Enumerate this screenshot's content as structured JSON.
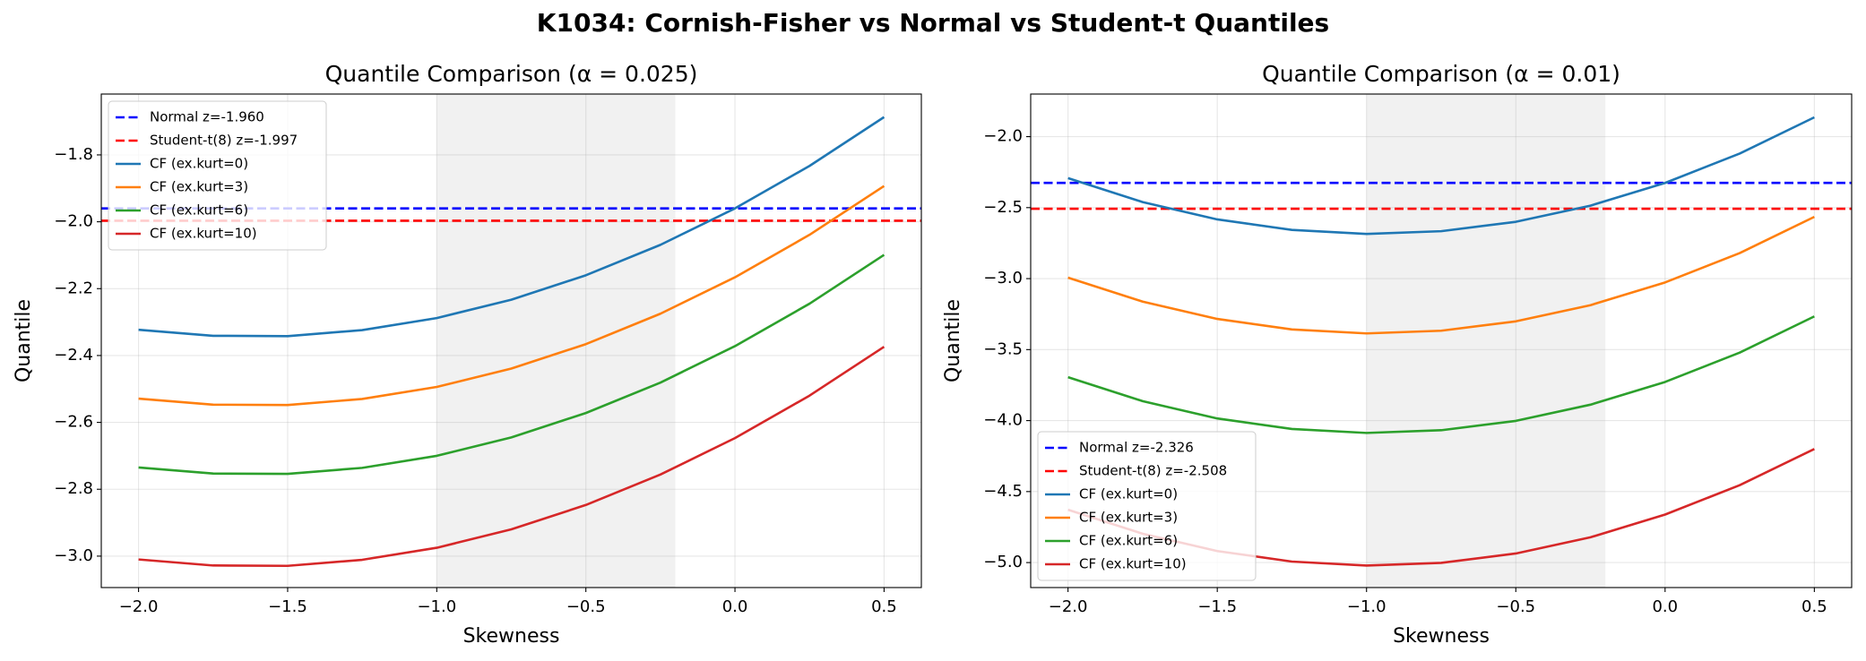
{
  "title": "K1034: Cornish-Fisher vs Normal vs Student-t Quantiles",
  "chart_data": [
    {
      "type": "line",
      "title": "Quantile Comparison (α = 0.025)",
      "x_label": "Skewness",
      "y_label": "Quantile",
      "x": [
        -2.0,
        -1.75,
        -1.5,
        -1.25,
        -1.0,
        -0.75,
        -0.5,
        -0.25,
        0.0,
        0.25,
        0.5
      ],
      "hlines": [
        {
          "name": "Normal z=-1.960",
          "color": "#0000ff",
          "value": -1.96
        },
        {
          "name": "Student-t(8) z=-1.997",
          "color": "#ff0000",
          "value": -1.997
        }
      ],
      "series": [
        {
          "name": "CF (ex.kurt=0)",
          "color": "#1f77b4",
          "values": [
            -2.323,
            -2.341,
            -2.342,
            -2.324,
            -2.288,
            -2.233,
            -2.16,
            -2.069,
            -1.96,
            -1.833,
            -1.687
          ]
        },
        {
          "name": "CF (ex.kurt=3)",
          "color": "#ff7f0e",
          "values": [
            -2.529,
            -2.547,
            -2.548,
            -2.53,
            -2.494,
            -2.439,
            -2.366,
            -2.275,
            -2.166,
            -2.039,
            -1.893
          ]
        },
        {
          "name": "CF (ex.kurt=6)",
          "color": "#2ca02c",
          "values": [
            -2.735,
            -2.753,
            -2.754,
            -2.736,
            -2.7,
            -2.645,
            -2.572,
            -2.481,
            -2.372,
            -2.245,
            -2.099
          ]
        },
        {
          "name": "CF (ex.kurt=10)",
          "color": "#d62728",
          "values": [
            -3.01,
            -3.028,
            -3.029,
            -3.011,
            -2.975,
            -2.92,
            -2.847,
            -2.756,
            -2.647,
            -2.52,
            -2.374
          ]
        }
      ],
      "span_x": [
        -1.0,
        -0.2
      ],
      "xlim": [
        -2.125,
        0.625
      ],
      "xticks": [
        {
          "value": -2.0,
          "label": "−2.0"
        },
        {
          "value": -1.5,
          "label": "−1.5"
        },
        {
          "value": -1.0,
          "label": "−1.0"
        },
        {
          "value": -0.5,
          "label": "−0.5"
        },
        {
          "value": 0.0,
          "label": "0.0"
        },
        0.5
      ],
      "ylim": [
        -3.094,
        -1.618
      ],
      "yticks": [
        {
          "value": -3.0,
          "label": "−3.0"
        },
        {
          "value": -2.8,
          "label": "−2.8"
        },
        {
          "value": -2.6,
          "label": "−2.6"
        },
        {
          "value": -2.4,
          "label": "−2.4"
        },
        {
          "value": -2.2,
          "label": "−2.2"
        },
        {
          "value": -2.0,
          "label": "−2.0"
        },
        {
          "value": -1.8,
          "label": "−1.8"
        }
      ],
      "grid": true,
      "legend": "upper-left"
    },
    {
      "type": "line",
      "title": "Quantile Comparison (α = 0.01)",
      "x_label": "Skewness",
      "y_label": "Quantile",
      "x": [
        -2.0,
        -1.75,
        -1.5,
        -1.25,
        -1.0,
        -0.75,
        -0.5,
        -0.25,
        0.0,
        0.25,
        0.5
      ],
      "hlines": [
        {
          "name": "Normal z=-2.326",
          "color": "#0000ff",
          "value": -2.326
        },
        {
          "name": "Student-t(8) z=-2.508",
          "color": "#ff0000",
          "value": -2.508
        }
      ],
      "series": [
        {
          "name": "CF (ex.kurt=0)",
          "color": "#1f77b4",
          "values": [
            -2.292,
            -2.461,
            -2.583,
            -2.657,
            -2.685,
            -2.666,
            -2.6,
            -2.486,
            -2.326,
            -2.119,
            -1.864
          ]
        },
        {
          "name": "CF (ex.kurt=3)",
          "color": "#ff7f0e",
          "values": [
            -2.993,
            -3.162,
            -3.284,
            -3.358,
            -3.386,
            -3.367,
            -3.301,
            -3.187,
            -3.027,
            -2.82,
            -2.565
          ]
        },
        {
          "name": "CF (ex.kurt=6)",
          "color": "#2ca02c",
          "values": [
            -3.694,
            -3.863,
            -3.985,
            -4.059,
            -4.087,
            -4.068,
            -4.002,
            -3.888,
            -3.728,
            -3.521,
            -3.266
          ]
        },
        {
          "name": "CF (ex.kurt=10)",
          "color": "#d62728",
          "values": [
            -4.628,
            -4.797,
            -4.919,
            -4.993,
            -5.021,
            -5.002,
            -4.936,
            -4.822,
            -4.662,
            -4.455,
            -4.2
          ]
        }
      ],
      "span_x": [
        -1.0,
        -0.2
      ],
      "xlim": [
        -2.125,
        0.625
      ],
      "xticks": [
        {
          "value": -2.0,
          "label": "−2.0"
        },
        {
          "value": -1.5,
          "label": "−1.5"
        },
        {
          "value": -1.0,
          "label": "−1.0"
        },
        {
          "value": -0.5,
          "label": "−0.5"
        },
        {
          "value": 0.0,
          "label": "0.0"
        },
        0.5
      ],
      "ylim": [
        -5.176,
        -1.7
      ],
      "yticks": [
        {
          "value": -5.0,
          "label": "−5.0"
        },
        {
          "value": -4.5,
          "label": "−4.5"
        },
        {
          "value": -4.0,
          "label": "−4.0"
        },
        {
          "value": -3.5,
          "label": "−3.5"
        },
        {
          "value": -3.0,
          "label": "−3.0"
        },
        {
          "value": -2.5,
          "label": "−2.5"
        },
        {
          "value": -2.0,
          "label": "−2.0"
        }
      ],
      "grid": true,
      "legend": "lower-left"
    }
  ]
}
